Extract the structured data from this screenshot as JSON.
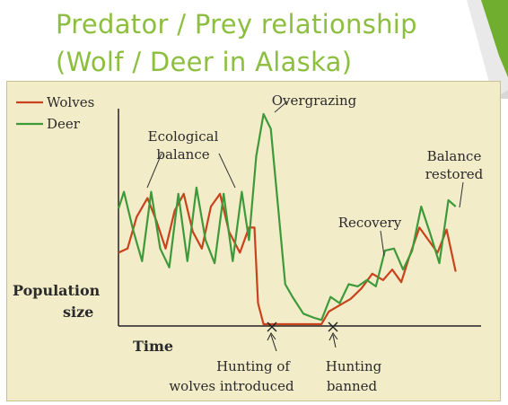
{
  "slide": {
    "title_line1": "Predator / Prey relationship",
    "title_line2": "(Wolf / Deer in Alaska)",
    "accent_color": "#8cbf3f"
  },
  "chart_data": {
    "type": "line",
    "title": "",
    "xlabel": "Time",
    "ylabel": "Population size",
    "ylim": [
      0,
      10
    ],
    "xlim": [
      0,
      100
    ],
    "grid": false,
    "legend_position": "top-left",
    "legend": [
      "Wolves",
      "Deer"
    ],
    "series": [
      {
        "name": "Wolves",
        "color": "#c8421b",
        "x": [
          0,
          2.5,
          5,
          8,
          10.5,
          13,
          15.5,
          18,
          20.5,
          23,
          25.5,
          28,
          30.5,
          33.5,
          36,
          37.5,
          38.5,
          40,
          45,
          50,
          53,
          56,
          58,
          61,
          64,
          67,
          70,
          73,
          75.5,
          78,
          80,
          83,
          85.5,
          88,
          90.5,
          93
        ],
        "values": [
          3.4,
          3.6,
          5.1,
          6.0,
          4.9,
          3.6,
          5.4,
          6.2,
          4.4,
          3.6,
          5.6,
          6.2,
          4.4,
          3.4,
          4.6,
          4.6,
          1.0,
          0.0,
          0.0,
          0.0,
          0.0,
          0.0,
          0.6,
          0.9,
          1.2,
          1.7,
          2.4,
          2.1,
          2.6,
          2.0,
          3.1,
          4.6,
          4.0,
          3.4,
          4.5,
          2.5
        ]
      },
      {
        "name": "Deer",
        "color": "#3d9a3a",
        "x": [
          0,
          1.5,
          4,
          6.5,
          9,
          11.5,
          14,
          16.5,
          19,
          21.5,
          24,
          26.5,
          29,
          31.5,
          34,
          36,
          38,
          40,
          42,
          44,
          46,
          48,
          51,
          54,
          56,
          58.5,
          61,
          63.5,
          66,
          68.5,
          71,
          73.5,
          76,
          78.5,
          81,
          83.5,
          86,
          88.5,
          91,
          93
        ],
        "values": [
          5.5,
          6.3,
          4.5,
          3.0,
          6.3,
          3.6,
          2.7,
          6.2,
          3.0,
          6.5,
          4.0,
          2.9,
          6.2,
          3.0,
          6.3,
          4.0,
          8.0,
          10.0,
          9.3,
          5.6,
          1.9,
          1.3,
          0.5,
          0.3,
          0.2,
          1.3,
          1.0,
          1.9,
          1.8,
          2.1,
          1.8,
          3.5,
          3.6,
          2.6,
          3.5,
          5.6,
          4.3,
          2.9,
          5.9,
          5.6
        ]
      }
    ],
    "annotations": [
      {
        "text": "Overgrazing",
        "x": 40,
        "y": 10,
        "type": "label"
      },
      {
        "text": "Ecological balance",
        "x": 16,
        "y": 7,
        "type": "label"
      },
      {
        "text": "Recovery",
        "x": 72,
        "y": 3.6,
        "type": "label"
      },
      {
        "text": "Balance restored",
        "x": 92,
        "y": 6,
        "type": "label"
      },
      {
        "text": "Hunting of wolves introduced",
        "x": 38.5,
        "type": "axis-marker"
      },
      {
        "text": "Hunting banned",
        "x": 56,
        "type": "axis-marker"
      }
    ]
  },
  "labels": {
    "legend_wolves": "Wolves",
    "legend_deer": "Deer",
    "overgrazing": "Overgrazing",
    "eco_line1": "Ecological",
    "eco_line2": "balance",
    "recovery": "Recovery",
    "bal_line1": "Balance",
    "bal_line2": "restored",
    "ylabel_line1": "Population",
    "ylabel_line2": "size",
    "xlabel": "Time",
    "hunt_line1": "Hunting of",
    "hunt_line2": "wolves introduced",
    "ban_line1": "Hunting",
    "ban_line2": "banned"
  }
}
